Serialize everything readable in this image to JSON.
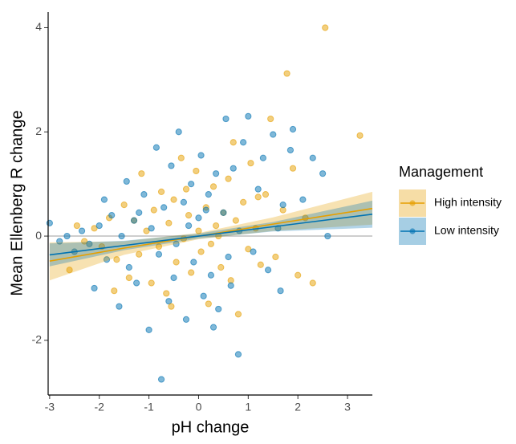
{
  "chart_data": {
    "type": "scatter",
    "xlabel": "pH change",
    "ylabel": "Mean Ellenberg R change",
    "xlim": [
      -3.03,
      3.5
    ],
    "ylim": [
      -3.05,
      4.3
    ],
    "xticks": [
      -3,
      -2,
      -1,
      0,
      1,
      2,
      3
    ],
    "yticks": [
      -2,
      0,
      2,
      4
    ],
    "hline": 0,
    "legend_title": "Management",
    "legend_position": "right",
    "series": [
      {
        "name": "High intensity",
        "color": "#E69F00",
        "x": [
          -2.6,
          -2.45,
          -2.3,
          -2.1,
          -1.95,
          -1.8,
          -1.65,
          -1.5,
          -1.4,
          -1.3,
          -1.2,
          -1.15,
          -1.05,
          -0.95,
          -0.9,
          -0.8,
          -0.75,
          -0.65,
          -0.6,
          -0.5,
          -0.45,
          -0.35,
          -0.3,
          -0.2,
          -0.15,
          -0.05,
          0.0,
          0.05,
          0.15,
          0.2,
          0.3,
          0.35,
          0.45,
          0.5,
          0.6,
          0.65,
          0.75,
          0.8,
          0.9,
          1.0,
          1.05,
          1.15,
          1.25,
          1.35,
          1.45,
          1.55,
          1.7,
          1.78,
          1.9,
          2.0,
          2.15,
          2.3,
          2.55,
          3.25,
          -1.7,
          -0.25,
          0.25,
          0.7,
          1.2,
          -0.55,
          0.4
        ],
        "values": [
          -0.65,
          0.2,
          -0.1,
          0.15,
          -0.2,
          0.35,
          -0.45,
          0.6,
          -0.8,
          0.3,
          -0.35,
          1.2,
          0.1,
          -0.9,
          0.5,
          -0.2,
          0.85,
          -1.1,
          0.25,
          0.7,
          -0.5,
          1.5,
          -0.05,
          0.4,
          -0.7,
          1.25,
          0.1,
          -0.3,
          0.55,
          -1.3,
          0.95,
          0.2,
          -0.6,
          0.45,
          1.1,
          -0.85,
          0.3,
          -1.5,
          0.65,
          -0.25,
          1.4,
          0.15,
          -0.55,
          0.8,
          2.25,
          -0.4,
          0.5,
          3.12,
          1.3,
          -0.75,
          0.35,
          -0.9,
          4.0,
          1.93,
          -1.05,
          0.9,
          -0.15,
          1.8,
          0.75,
          -1.35,
          0.0
        ],
        "fit": {
          "x": [
            -3,
            -1.5,
            0,
            1.5,
            3.5
          ],
          "values": [
            -0.48,
            -0.23,
            0,
            0.23,
            0.53
          ],
          "lower": [
            -0.85,
            -0.36,
            -0.06,
            0.1,
            0.22
          ],
          "upper": [
            -0.12,
            -0.1,
            0.06,
            0.36,
            0.85
          ]
        }
      },
      {
        "name": "Low intensity",
        "color": "#0072B2",
        "x": [
          -3.0,
          -2.8,
          -2.65,
          -2.5,
          -2.35,
          -2.2,
          -2.1,
          -2.0,
          -1.9,
          -1.85,
          -1.75,
          -1.6,
          -1.55,
          -1.45,
          -1.4,
          -1.3,
          -1.25,
          -1.1,
          -1.0,
          -0.95,
          -0.85,
          -0.8,
          -0.75,
          -0.7,
          -0.6,
          -0.55,
          -0.45,
          -0.4,
          -0.3,
          -0.25,
          -0.15,
          -0.1,
          0.0,
          0.05,
          0.1,
          0.2,
          0.25,
          0.35,
          0.4,
          0.5,
          0.55,
          0.65,
          0.7,
          0.8,
          0.82,
          0.9,
          1.0,
          1.1,
          1.2,
          1.3,
          1.4,
          1.5,
          1.65,
          1.7,
          1.85,
          1.9,
          2.1,
          2.3,
          2.5,
          2.6,
          -0.5,
          0.15,
          0.6,
          -0.2,
          0.3,
          -1.2,
          1.6
        ],
        "values": [
          0.25,
          -0.1,
          0.0,
          -0.3,
          0.1,
          -0.15,
          -1.0,
          0.2,
          0.7,
          -0.45,
          0.4,
          -1.35,
          0.0,
          1.05,
          -0.6,
          0.3,
          -0.9,
          0.8,
          -1.8,
          0.15,
          1.7,
          -0.35,
          -2.75,
          0.55,
          -1.25,
          1.35,
          -0.15,
          2.0,
          0.65,
          -1.6,
          1.0,
          -0.5,
          0.35,
          1.55,
          -1.15,
          0.8,
          -0.75,
          1.2,
          -1.4,
          0.45,
          2.25,
          -0.95,
          1.3,
          -2.27,
          0.1,
          1.8,
          2.3,
          -0.3,
          0.9,
          1.5,
          -0.65,
          1.95,
          -1.05,
          0.6,
          1.65,
          2.05,
          0.7,
          1.5,
          1.2,
          0.0,
          -0.8,
          0.5,
          -0.4,
          0.2,
          -1.75,
          0.45,
          0.15
        ],
        "fit": {
          "x": [
            -3,
            -1.5,
            0,
            1.5,
            3.5
          ],
          "values": [
            -0.36,
            -0.18,
            0,
            0.18,
            0.42
          ],
          "lower": [
            -0.58,
            -0.27,
            -0.05,
            0.09,
            0.16
          ],
          "upper": [
            -0.14,
            -0.09,
            0.05,
            0.27,
            0.68
          ]
        }
      }
    ]
  }
}
